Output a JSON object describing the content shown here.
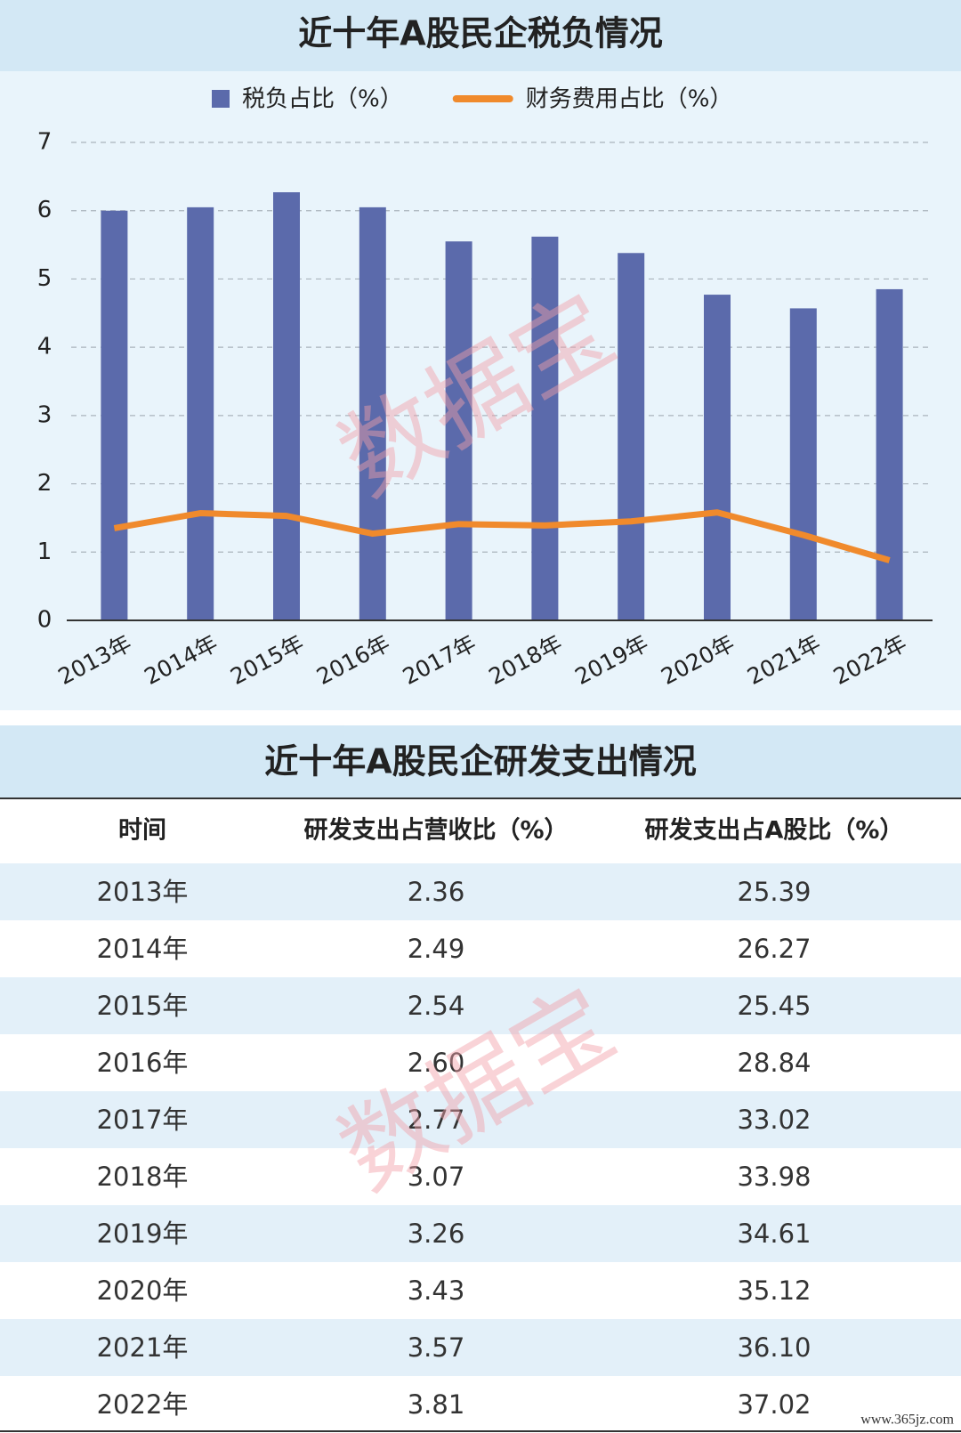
{
  "chart_data": {
    "type": "bar_line",
    "title": "近十年A股民企税负情况",
    "categories": [
      "2013年",
      "2014年",
      "2015年",
      "2016年",
      "2017年",
      "2018年",
      "2019年",
      "2020年",
      "2021年",
      "2022年"
    ],
    "series": [
      {
        "name": "税负占比（%）",
        "type": "bar",
        "color": "#5b6aab",
        "values": [
          6.0,
          6.05,
          6.27,
          6.05,
          5.55,
          5.62,
          5.38,
          4.77,
          4.57,
          4.85
        ]
      },
      {
        "name": "财务费用占比（%）",
        "type": "line",
        "color": "#f08a2c",
        "values": [
          1.35,
          1.57,
          1.53,
          1.27,
          1.41,
          1.39,
          1.45,
          1.58,
          1.25,
          0.88
        ]
      }
    ],
    "ylim": [
      0,
      7
    ],
    "yticks": [
      0,
      1,
      2,
      3,
      4,
      5,
      6,
      7
    ],
    "grid": true,
    "legend": "top"
  },
  "table": {
    "title": "近十年A股民企研发支出情况",
    "header": [
      "时间",
      "研发支出占营收比（%）",
      "研发支出占A股比（%）"
    ],
    "rows": [
      [
        "2013年",
        "2.36",
        "25.39"
      ],
      [
        "2014年",
        "2.49",
        "26.27"
      ],
      [
        "2015年",
        "2.54",
        "25.45"
      ],
      [
        "2016年",
        "2.60",
        "28.84"
      ],
      [
        "2017年",
        "2.77",
        "33.02"
      ],
      [
        "2018年",
        "3.07",
        "33.98"
      ],
      [
        "2019年",
        "3.26",
        "34.61"
      ],
      [
        "2020年",
        "3.43",
        "35.12"
      ],
      [
        "2021年",
        "3.57",
        "36.10"
      ],
      [
        "2022年",
        "3.81",
        "37.02"
      ]
    ]
  },
  "watermarks": [
    "数据宝",
    "数据宝"
  ],
  "footer": "www.365jz.com"
}
